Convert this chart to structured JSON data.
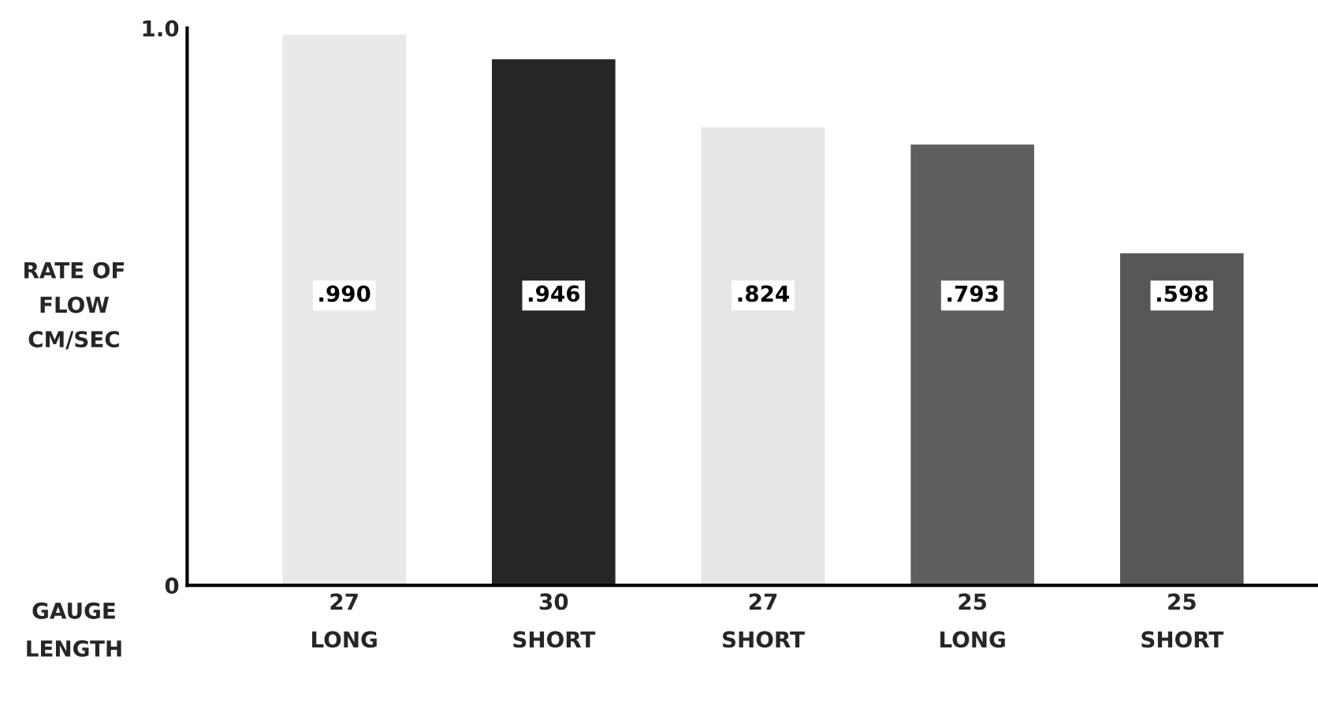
{
  "chart_data": {
    "type": "bar",
    "ylabel": "RATE OF\nFLOW\nCM/SEC",
    "xlabel": "GAUGE\nLENGTH",
    "categories": [
      "27\nLONG",
      "30\nSHORT",
      "27\nSHORT",
      "25\nLONG",
      "25\nSHORT"
    ],
    "values": [
      0.99,
      0.946,
      0.824,
      0.793,
      0.598
    ],
    "value_labels": [
      ".990",
      ".946",
      ".824",
      ".793",
      ".598"
    ],
    "colors": [
      "#e9e9e9",
      "#262626",
      "#e6e6e6",
      "#5f5f5f",
      "#575757"
    ],
    "ylim": [
      0,
      1.0
    ],
    "yticks": [
      0,
      {
        "value": 1.0,
        "label": "1.0"
      }
    ],
    "grid": false
  }
}
